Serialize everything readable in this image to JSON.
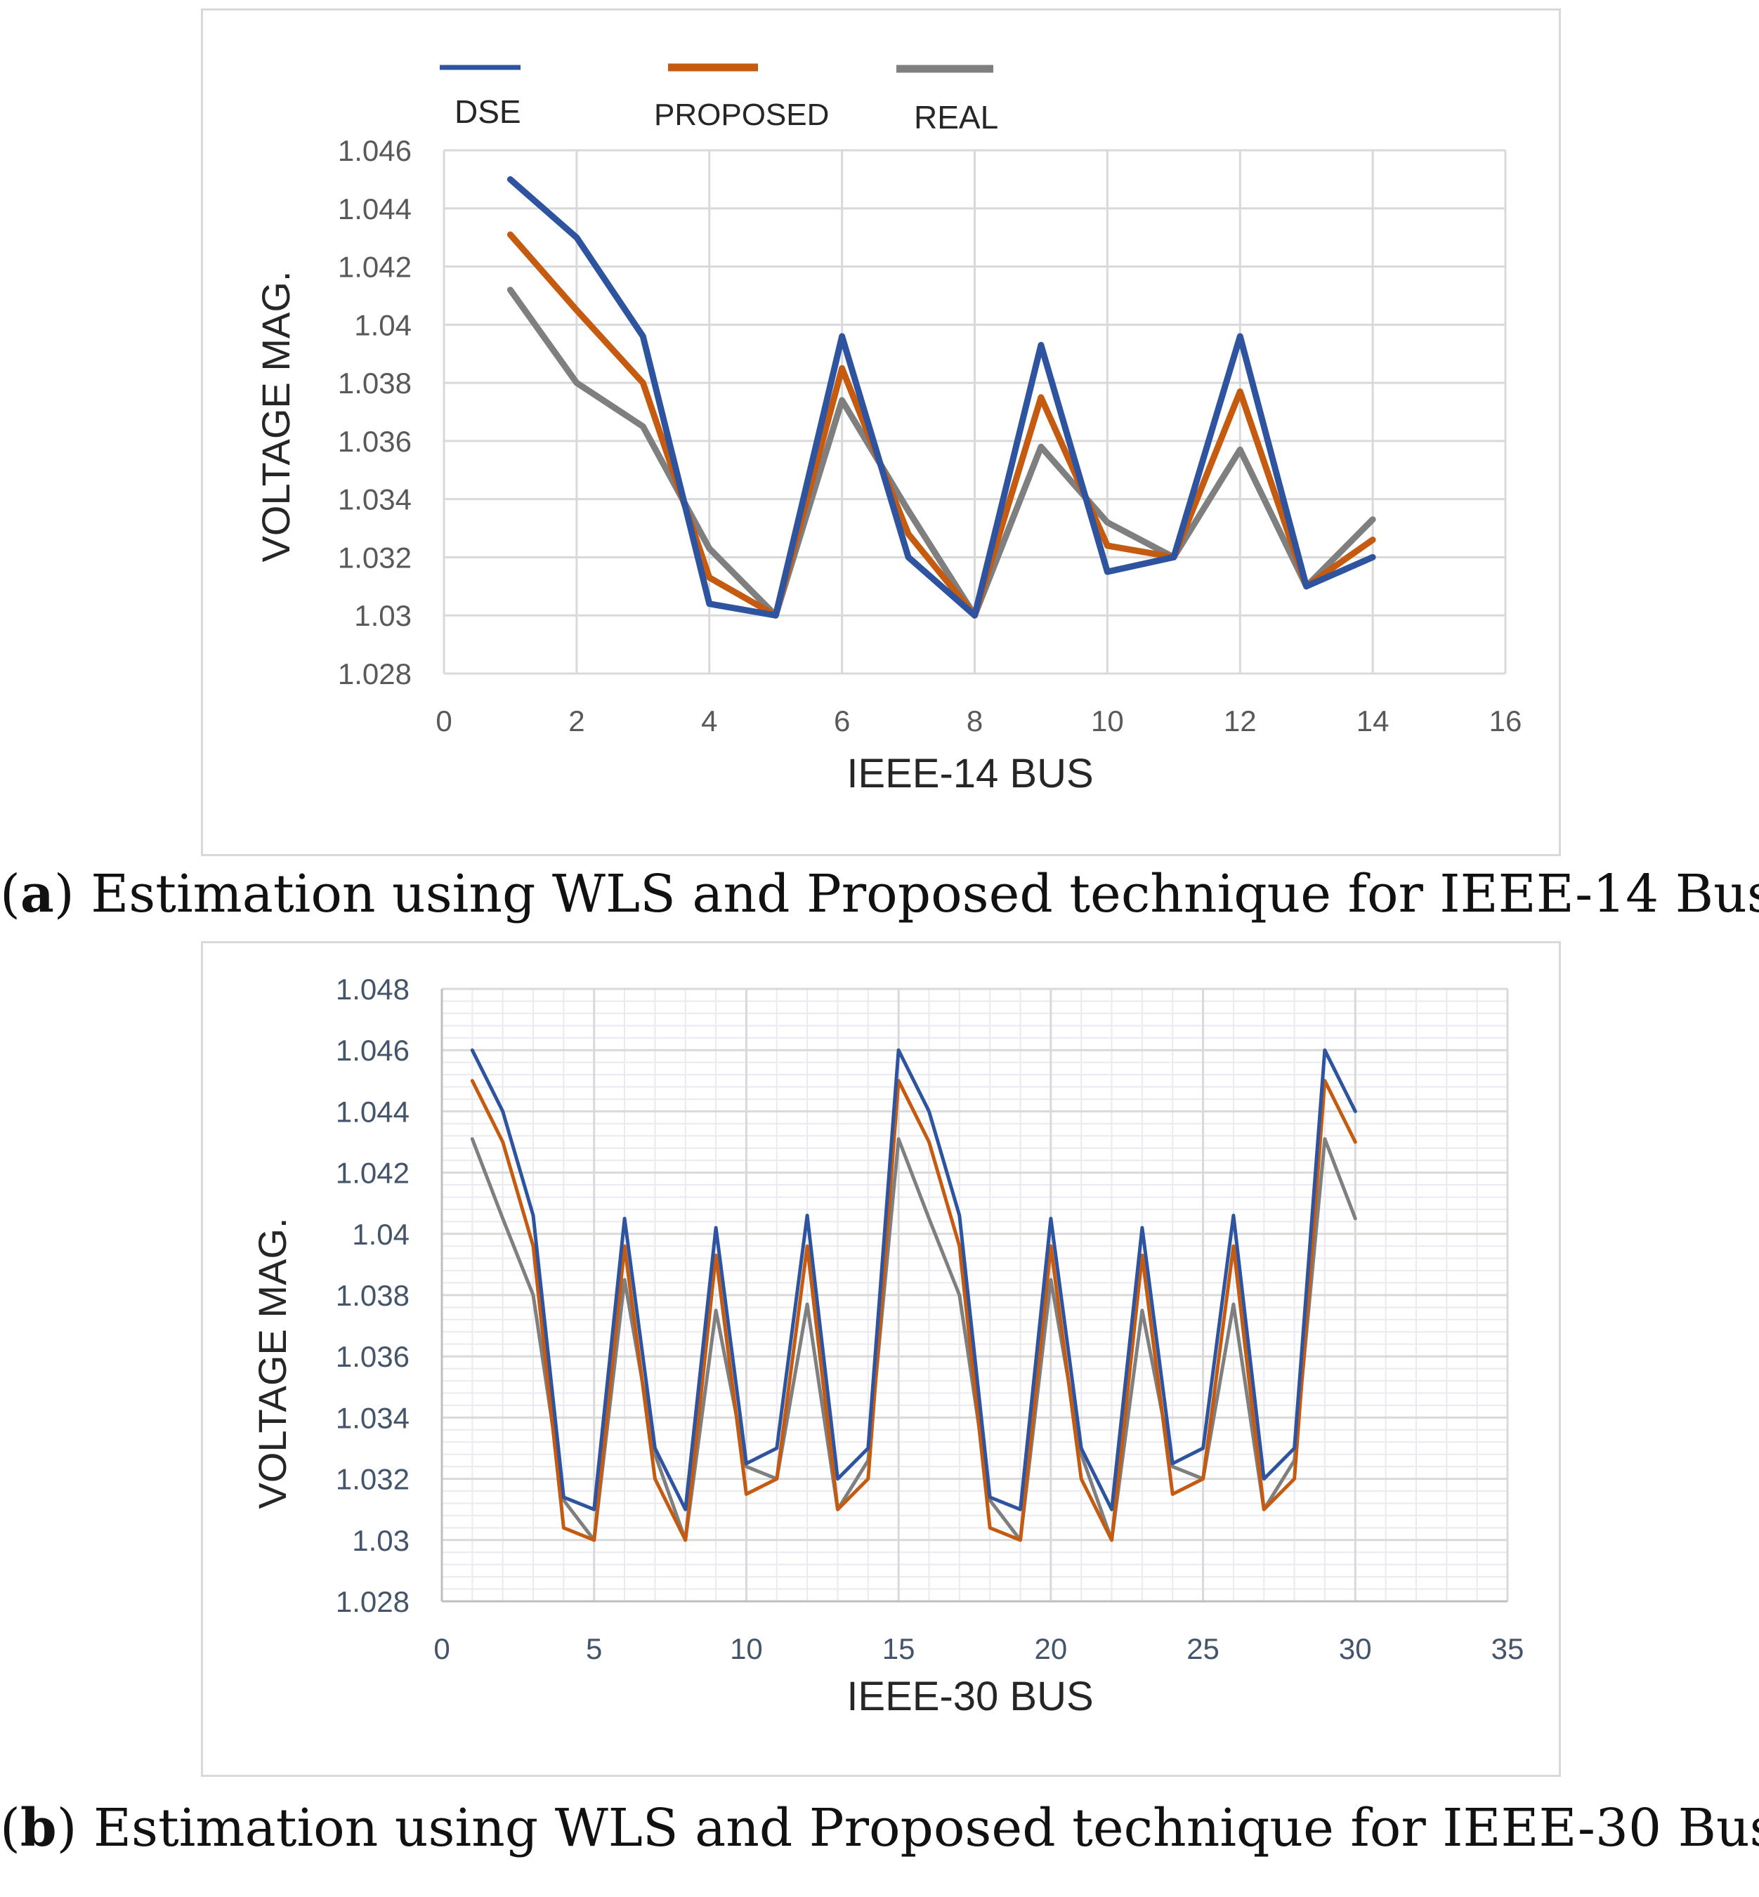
{
  "captions": {
    "a": {
      "open": "(",
      "letter": "a",
      "close": ")",
      "text": " Estimation using WLS and Proposed technique for IEEE-14 Bus"
    },
    "b": {
      "open": "(",
      "letter": "b",
      "close": ")",
      "text": " Estimation using WLS and Proposed technique for IEEE-30 Bus"
    }
  },
  "colors": {
    "dse": "#2e54a0",
    "proposed": "#c55a11",
    "real": "#7f7f7f",
    "grid": "#d9d9d9",
    "minor_grid": "#eaeaf0",
    "tick": "#595959",
    "tick_b": "#44546a"
  },
  "chart_data": [
    {
      "type": "line",
      "title": "",
      "xlabel": "IEEE-14 BUS",
      "ylabel": "VOLTAGE  MAG.",
      "xlim": [
        0,
        16
      ],
      "ylim": [
        1.028,
        1.046
      ],
      "xticks": [
        "0",
        "2",
        "4",
        "6",
        "8",
        "10",
        "12",
        "14",
        "16"
      ],
      "yticks": [
        "1.028",
        "1.03",
        "1.032",
        "1.034",
        "1.036",
        "1.038",
        "1.04",
        "1.042",
        "1.044",
        "1.046"
      ],
      "legend_position": "top",
      "grid": true,
      "x": [
        1,
        2,
        3,
        4,
        5,
        6,
        7,
        8,
        9,
        10,
        11,
        12,
        13,
        14
      ],
      "series": [
        {
          "name": "DSE",
          "values": [
            1.045,
            1.043,
            1.0396,
            1.0304,
            1.03,
            1.0396,
            1.032,
            1.03,
            1.0393,
            1.0315,
            1.032,
            1.0396,
            1.031,
            1.032
          ]
        },
        {
          "name": "PROPOSED",
          "values": [
            1.0431,
            1.0405,
            1.038,
            1.0313,
            1.03,
            1.0385,
            1.0328,
            1.03,
            1.0375,
            1.0324,
            1.032,
            1.0377,
            1.031,
            1.0326
          ]
        },
        {
          "name": "REAL",
          "values": [
            1.0412,
            1.038,
            1.0365,
            1.0323,
            1.03,
            1.0374,
            1.0336,
            1.03,
            1.0358,
            1.0332,
            1.032,
            1.0357,
            1.031,
            1.0333
          ]
        }
      ]
    },
    {
      "type": "line",
      "title": "",
      "xlabel": "IEEE-30 BUS",
      "ylabel": "VOLTAGE MAG.",
      "xlim": [
        0,
        35
      ],
      "ylim": [
        1.028,
        1.048
      ],
      "xticks": [
        "0",
        "5",
        "10",
        "15",
        "20",
        "25",
        "30",
        "35"
      ],
      "yticks": [
        "1.028",
        "1.03",
        "1.032",
        "1.034",
        "1.036",
        "1.038",
        "1.04",
        "1.042",
        "1.044",
        "1.046",
        "1.048"
      ],
      "grid": true,
      "x": [
        1,
        2,
        3,
        4,
        5,
        6,
        7,
        8,
        9,
        10,
        11,
        12,
        13,
        14,
        15,
        16,
        17,
        18,
        19,
        20,
        21,
        22,
        23,
        24,
        25,
        26,
        27,
        28,
        29,
        30
      ],
      "series": [
        {
          "name": "DSE",
          "values": [
            1.046,
            1.044,
            1.0406,
            1.0314,
            1.031,
            1.0405,
            1.033,
            1.031,
            1.0402,
            1.0325,
            1.033,
            1.0406,
            1.032,
            1.033,
            1.046,
            1.044,
            1.0406,
            1.0314,
            1.031,
            1.0405,
            1.033,
            1.031,
            1.0402,
            1.0325,
            1.033,
            1.0406,
            1.032,
            1.033,
            1.046,
            1.044
          ]
        },
        {
          "name": "PROPOSED",
          "values": [
            1.045,
            1.043,
            1.0396,
            1.0304,
            1.03,
            1.0396,
            1.032,
            1.03,
            1.0393,
            1.0315,
            1.032,
            1.0396,
            1.031,
            1.032,
            1.045,
            1.043,
            1.0396,
            1.0304,
            1.03,
            1.0396,
            1.032,
            1.03,
            1.0393,
            1.0315,
            1.032,
            1.0396,
            1.031,
            1.032,
            1.045,
            1.043
          ]
        },
        {
          "name": "REAL",
          "values": [
            1.0431,
            1.0405,
            1.038,
            1.0313,
            1.03,
            1.0385,
            1.0328,
            1.03,
            1.0375,
            1.0324,
            1.032,
            1.0377,
            1.031,
            1.0326,
            1.0431,
            1.0405,
            1.038,
            1.0313,
            1.03,
            1.0385,
            1.0328,
            1.03,
            1.0375,
            1.0324,
            1.032,
            1.0377,
            1.031,
            1.0326,
            1.0431,
            1.0405
          ]
        }
      ]
    }
  ]
}
